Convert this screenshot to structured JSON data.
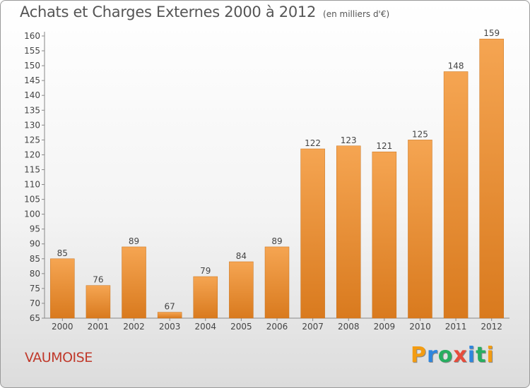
{
  "title": "Achats et Charges Externes 2000 à 2012",
  "unit_note": "(en milliers d'€)",
  "commune": "VAUMOISE",
  "logo": {
    "letters": [
      "P",
      "r",
      "o",
      "x",
      "i",
      "t",
      "i"
    ],
    "colors": [
      "#f39c12",
      "#2e86de",
      "#27ae60",
      "#e74c3c",
      "#2e86de",
      "#27ae60",
      "#f39c12"
    ]
  },
  "colors": {
    "bar_top": "#f5a552",
    "bar_bottom": "#d97a1e",
    "text": "#444444",
    "commune": "#c0392b"
  },
  "chart_data": {
    "type": "bar",
    "title": "Achats et Charges Externes 2000 à 2012",
    "xlabel": "",
    "ylabel": "",
    "categories": [
      "2000",
      "2001",
      "2002",
      "2003",
      "2004",
      "2005",
      "2006",
      "2007",
      "2008",
      "2009",
      "2010",
      "2011",
      "2012"
    ],
    "values": [
      85,
      76,
      89,
      67,
      79,
      84,
      89,
      122,
      123,
      121,
      125,
      148,
      159
    ],
    "ylim": [
      65,
      160
    ],
    "yticks": [
      65,
      70,
      75,
      80,
      85,
      90,
      95,
      100,
      105,
      110,
      115,
      120,
      125,
      130,
      135,
      140,
      145,
      150,
      155,
      160
    ],
    "grid": false
  }
}
